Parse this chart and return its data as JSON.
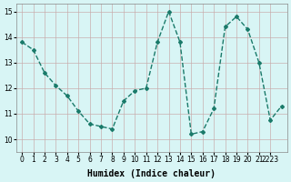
{
  "xlabel": "Humidex (Indice chaleur)",
  "x": [
    0,
    1,
    2,
    3,
    4,
    5,
    6,
    7,
    8,
    9,
    10,
    11,
    12,
    13,
    14,
    15,
    16,
    17,
    18,
    19,
    20,
    21,
    22,
    23
  ],
  "y": [
    13.8,
    13.5,
    12.6,
    12.1,
    11.7,
    11.1,
    10.6,
    10.5,
    10.4,
    11.5,
    11.9,
    12.0,
    13.8,
    15.0,
    13.8,
    10.2,
    10.3,
    11.2,
    14.4,
    14.8,
    14.3,
    13.0,
    10.75,
    11.3
  ],
  "line_color": "#1a7a6a",
  "marker": "D",
  "marker_size": 2.0,
  "line_width": 1.0,
  "ylim": [
    9.5,
    15.3
  ],
  "yticks": [
    10,
    11,
    12,
    13,
    14,
    15
  ],
  "xticks": [
    0,
    1,
    2,
    3,
    4,
    5,
    6,
    7,
    8,
    9,
    10,
    11,
    12,
    13,
    14,
    15,
    16,
    17,
    18,
    19,
    20,
    21,
    22
  ],
  "xtick_labels": [
    "0",
    "1",
    "2",
    "3",
    "4",
    "5",
    "6",
    "7",
    "8",
    "9",
    "10",
    "11",
    "12",
    "13",
    "14",
    "15",
    "16",
    "17",
    "18",
    "19",
    "20",
    "21",
    "2223"
  ],
  "bg_color": "#d8f5f5",
  "grid_color": "#c8a8a8",
  "grid_alpha": 0.9,
  "tick_fontsize": 5.5,
  "xlabel_fontsize": 7
}
